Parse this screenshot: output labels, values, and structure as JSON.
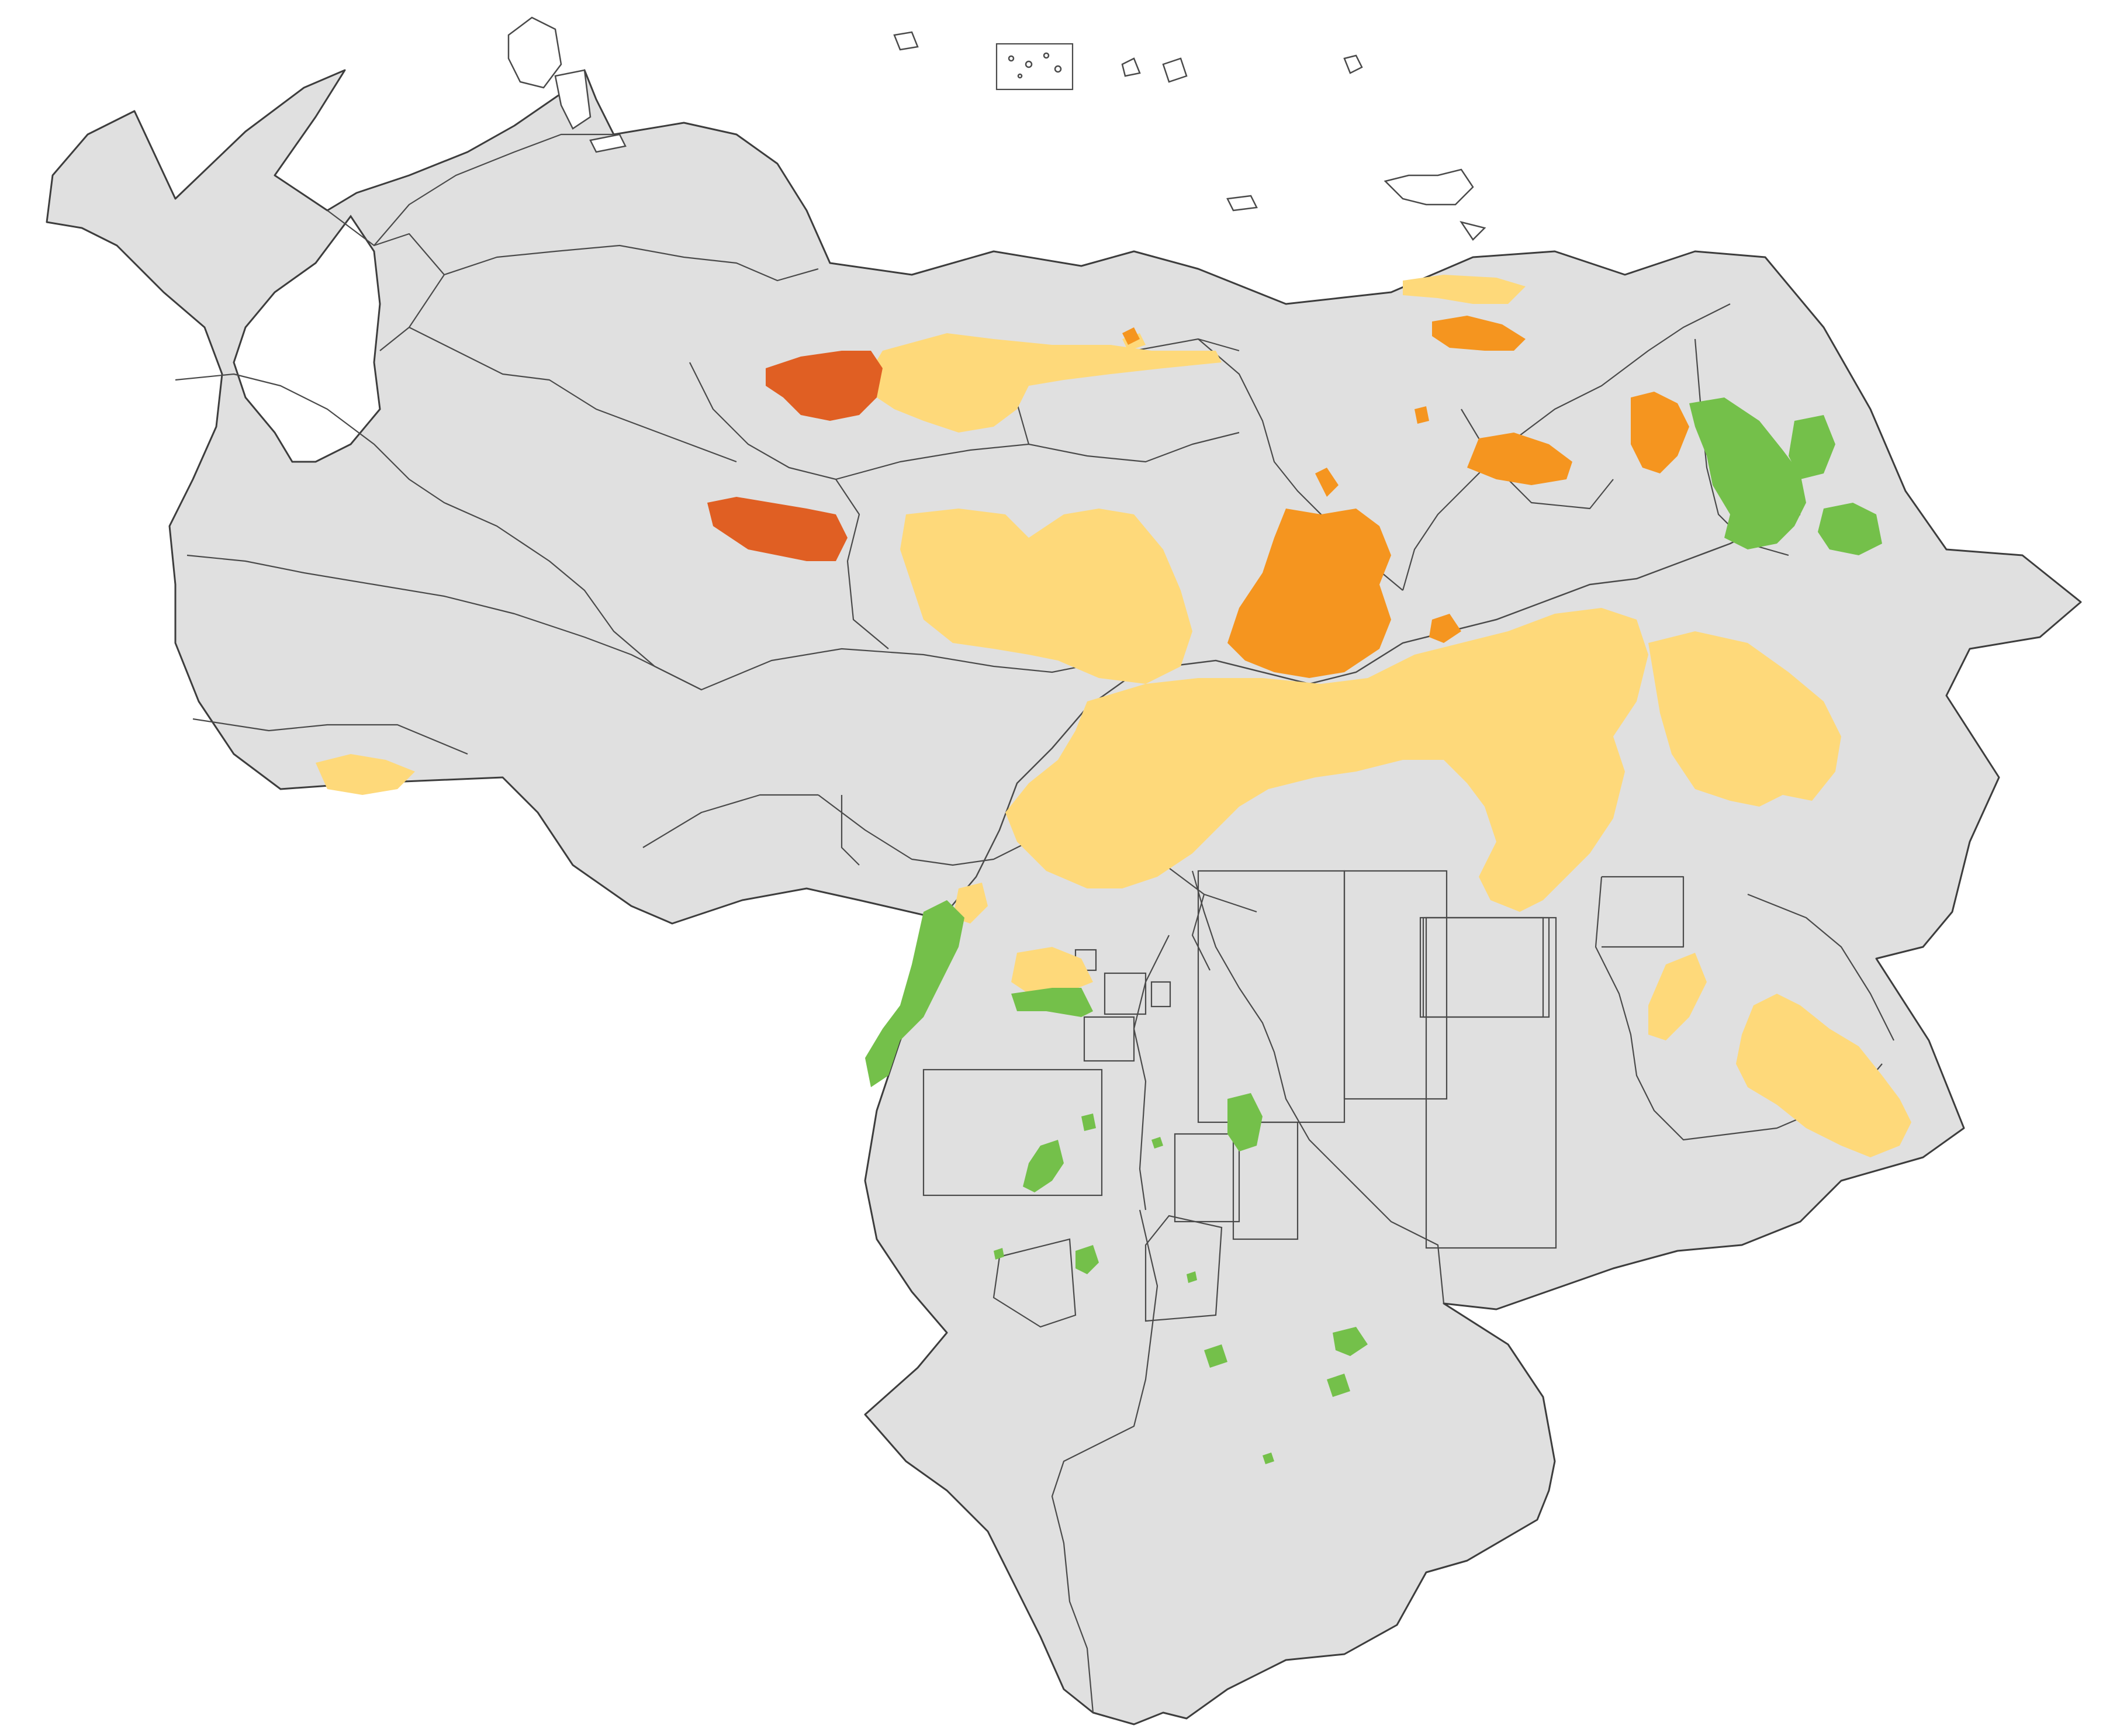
{
  "map": {
    "colors": {
      "land": "#e0e0e0",
      "border": "#3d3d3d",
      "water": "#ffffff",
      "light_yellow": "#fed97a",
      "orange": "#f5951f",
      "dark_orange": "#e05f23",
      "green": "#74c04a"
    },
    "zone_classes": [
      {
        "name": "light-yellow",
        "color": "#fed97a"
      },
      {
        "name": "orange",
        "color": "#f5951f"
      },
      {
        "name": "dark-orange",
        "color": "#e05f23"
      },
      {
        "name": "green",
        "color": "#74c04a"
      }
    ]
  }
}
